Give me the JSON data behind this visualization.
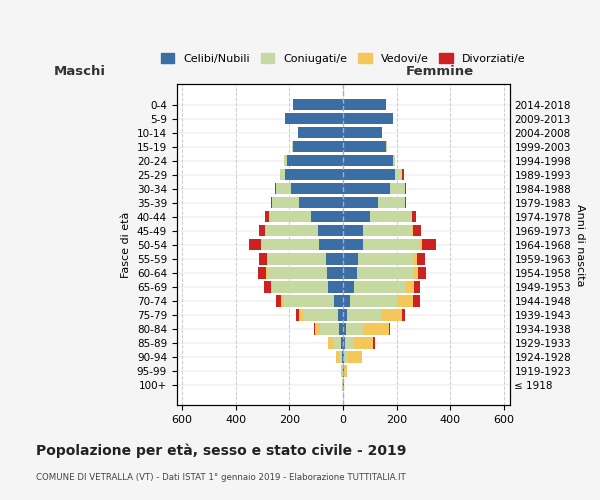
{
  "age_groups": [
    "100+",
    "95-99",
    "90-94",
    "85-89",
    "80-84",
    "75-79",
    "70-74",
    "65-69",
    "60-64",
    "55-59",
    "50-54",
    "45-49",
    "40-44",
    "35-39",
    "30-34",
    "25-29",
    "20-24",
    "15-19",
    "10-14",
    "5-9",
    "0-4"
  ],
  "birth_years": [
    "≤ 1918",
    "1919-1923",
    "1924-1928",
    "1929-1933",
    "1934-1938",
    "1939-1943",
    "1944-1948",
    "1949-1953",
    "1954-1958",
    "1959-1963",
    "1964-1968",
    "1969-1973",
    "1974-1978",
    "1979-1983",
    "1984-1988",
    "1989-1993",
    "1994-1998",
    "1999-2003",
    "2004-2008",
    "2009-2013",
    "2014-2018"
  ],
  "maschi": {
    "celibi": [
      2,
      2,
      5,
      8,
      15,
      20,
      35,
      55,
      60,
      65,
      90,
      95,
      120,
      165,
      195,
      215,
      210,
      185,
      170,
      215,
      185
    ],
    "coniugati": [
      1,
      3,
      10,
      30,
      70,
      130,
      185,
      210,
      225,
      215,
      215,
      195,
      155,
      100,
      55,
      20,
      10,
      5,
      0,
      0,
      0
    ],
    "vedovi": [
      0,
      2,
      10,
      20,
      20,
      15,
      10,
      5,
      3,
      2,
      1,
      0,
      0,
      0,
      0,
      0,
      0,
      0,
      0,
      0,
      0
    ],
    "divorziati": [
      0,
      0,
      0,
      0,
      2,
      10,
      20,
      25,
      30,
      30,
      45,
      25,
      15,
      5,
      5,
      0,
      0,
      0,
      0,
      0,
      0
    ]
  },
  "femmine": {
    "nubili": [
      2,
      2,
      5,
      8,
      10,
      15,
      25,
      40,
      50,
      55,
      75,
      75,
      100,
      130,
      175,
      195,
      185,
      160,
      145,
      185,
      160
    ],
    "coniugate": [
      1,
      3,
      12,
      30,
      65,
      125,
      175,
      195,
      210,
      205,
      210,
      180,
      155,
      100,
      55,
      25,
      10,
      5,
      0,
      0,
      0
    ],
    "vedove": [
      2,
      10,
      55,
      75,
      95,
      80,
      60,
      30,
      20,
      15,
      10,
      5,
      2,
      0,
      0,
      0,
      0,
      0,
      0,
      0,
      0
    ],
    "divorziate": [
      0,
      0,
      0,
      5,
      5,
      10,
      25,
      20,
      30,
      30,
      50,
      30,
      15,
      5,
      5,
      5,
      0,
      0,
      0,
      0,
      0
    ]
  },
  "colors": {
    "celibi": "#3a6ea5",
    "coniugati": "#c5d9a0",
    "vedovi": "#f5c75a",
    "divorziati": "#cc2222"
  },
  "legend_labels": [
    "Celibi/Nubili",
    "Coniugati/e",
    "Vedovi/e",
    "Divorziati/e"
  ],
  "legend_color_keys": [
    "celibi",
    "coniugati",
    "vedovi",
    "divorziati"
  ],
  "xlim": 620,
  "title": "Popolazione per età, sesso e stato civile - 2019",
  "subtitle": "COMUNE DI VETRALLA (VT) - Dati ISTAT 1° gennaio 2019 - Elaborazione TUTTITALIA.IT",
  "ylabel_left": "Fasce di età",
  "ylabel_right": "Anni di nascita",
  "xlabel_left": "Maschi",
  "xlabel_right": "Femmine",
  "bg_color": "#f5f5f5",
  "plot_bg": "#ffffff",
  "xticks": [
    -600,
    -400,
    -200,
    0,
    200,
    400,
    600
  ]
}
